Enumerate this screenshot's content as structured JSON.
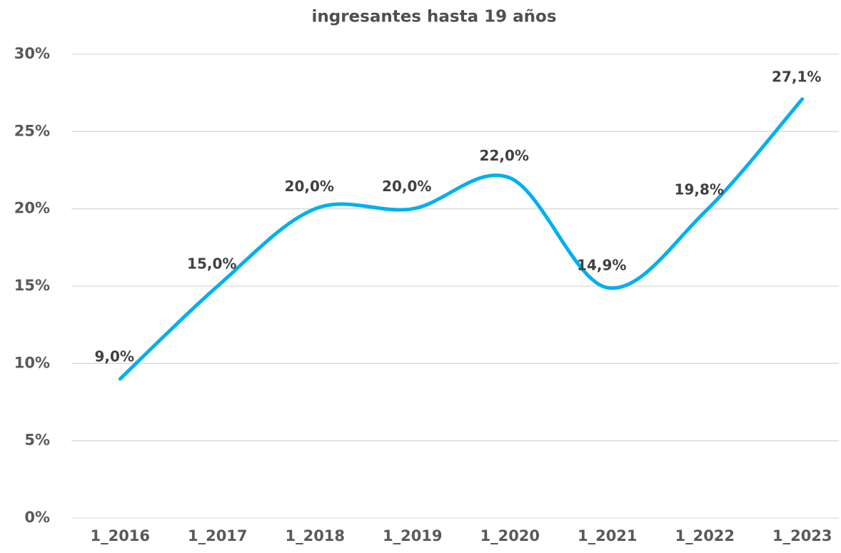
{
  "chart_data": {
    "type": "line",
    "title": "ingresantes hasta 19 años",
    "categories": [
      "1_2016",
      "1_2017",
      "1_2018",
      "1_2019",
      "1_2020",
      "1_2021",
      "1_2022",
      "1_2023"
    ],
    "series": [
      {
        "name": "ingresantes hasta 19 años",
        "color": "#00b0f0",
        "values": [
          9.0,
          15.0,
          20.0,
          20.0,
          22.0,
          14.9,
          19.8,
          27.1
        ],
        "value_labels": [
          "9,0%",
          "15,0%",
          "20,0%",
          "20,0%",
          "22,0%",
          "14,9%",
          "19,8%",
          "27,1%"
        ]
      }
    ],
    "ylim": [
      0,
      30
    ],
    "yticks": [
      {
        "value": 0,
        "label": "0%"
      },
      {
        "value": 5,
        "label": "5%"
      },
      {
        "value": 10,
        "label": "10%"
      },
      {
        "value": 15,
        "label": "15%"
      },
      {
        "value": 20,
        "label": "20%"
      },
      {
        "value": 25,
        "label": "25%"
      },
      {
        "value": 30,
        "label": "30%"
      }
    ],
    "grid": true,
    "smooth": true
  }
}
